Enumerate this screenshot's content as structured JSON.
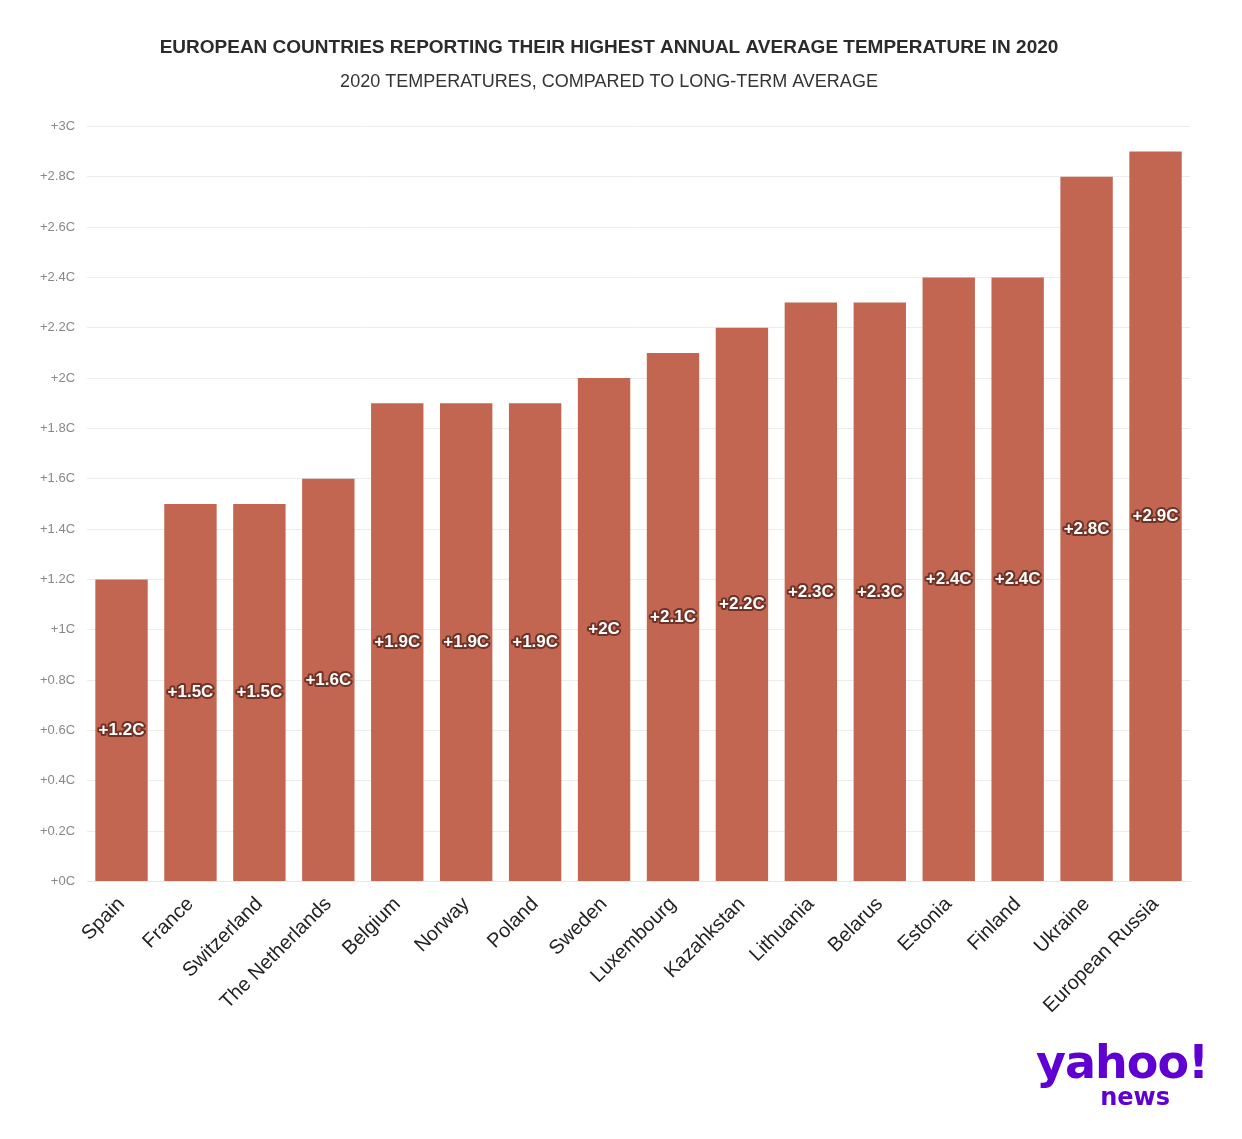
{
  "chart_data": {
    "type": "bar",
    "title": "EUROPEAN COUNTRIES REPORTING THEIR HIGHEST ANNUAL AVERAGE TEMPERATURE IN 2020",
    "subtitle": "2020 TEMPERATURES, COMPARED TO LONG-TERM AVERAGE",
    "categories": [
      "Spain",
      "France",
      "Switzerland",
      "The Netherlands",
      "Belgium",
      "Norway",
      "Poland",
      "Sweden",
      "Luxembourg",
      "Kazahkstan",
      "Lithuania",
      "Belarus",
      "Estonia",
      "Finland",
      "Ukraine",
      "European Russia"
    ],
    "values": [
      1.2,
      1.5,
      1.5,
      1.6,
      1.9,
      1.9,
      1.9,
      2,
      2.1,
      2.2,
      2.3,
      2.3,
      2.4,
      2.4,
      2.8,
      2.9
    ],
    "value_labels": [
      "+1.2C",
      "+1.5C",
      "+1.5C",
      "+1.6C",
      "+1.9C",
      "+1.9C",
      "+1.9C",
      "+2C",
      "+2.1C",
      "+2.2C",
      "+2.3C",
      "+2.3C",
      "+2.4C",
      "+2.4C",
      "+2.8C",
      "+2.9C"
    ],
    "color": "#c26652",
    "ylim": [
      0,
      3
    ],
    "yticks": [
      {
        "value": 0,
        "label": "+0C"
      },
      {
        "value": 0.2,
        "label": "+0.2C"
      },
      {
        "value": 0.4,
        "label": "+0.4C"
      },
      {
        "value": 0.6,
        "label": "+0.6C"
      },
      {
        "value": 0.8,
        "label": "+0.8C"
      },
      {
        "value": 1,
        "label": "+1C"
      },
      {
        "value": 1.2,
        "label": "+1.2C"
      },
      {
        "value": 1.4,
        "label": "+1.4C"
      },
      {
        "value": 1.6,
        "label": "+1.6C"
      },
      {
        "value": 1.8,
        "label": "+1.8C"
      },
      {
        "value": 2,
        "label": "+2C"
      },
      {
        "value": 2.2,
        "label": "+2.2C"
      },
      {
        "value": 2.4,
        "label": "+2.4C"
      },
      {
        "value": 2.6,
        "label": "+2.6C"
      },
      {
        "value": 2.8,
        "label": "+2.8C"
      },
      {
        "value": 3,
        "label": "+3C"
      }
    ],
    "grid": true,
    "data_labels": true,
    "annotations": [
      "yahoo!",
      "news"
    ]
  }
}
